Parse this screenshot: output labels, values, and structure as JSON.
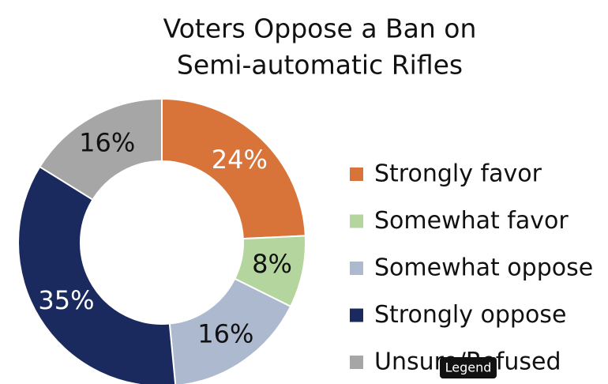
{
  "chart_data": {
    "type": "donut",
    "title": [
      "Voters Oppose a Ban on",
      "Semi-automatic Rifles"
    ],
    "categories": [
      "Strongly favor",
      "Somewhat favor",
      "Somewhat oppose",
      "Strongly oppose",
      "Unsure/Refused"
    ],
    "values": [
      24,
      8,
      16,
      35,
      16
    ],
    "value_labels": [
      "24%",
      "8%",
      "16%",
      "35%",
      "16%"
    ],
    "colors": [
      "#d8733a",
      "#b5d59f",
      "#adb9ce",
      "#1b2a5e",
      "#a6a6a6"
    ],
    "legend": "right"
  },
  "tooltip": "Legend"
}
